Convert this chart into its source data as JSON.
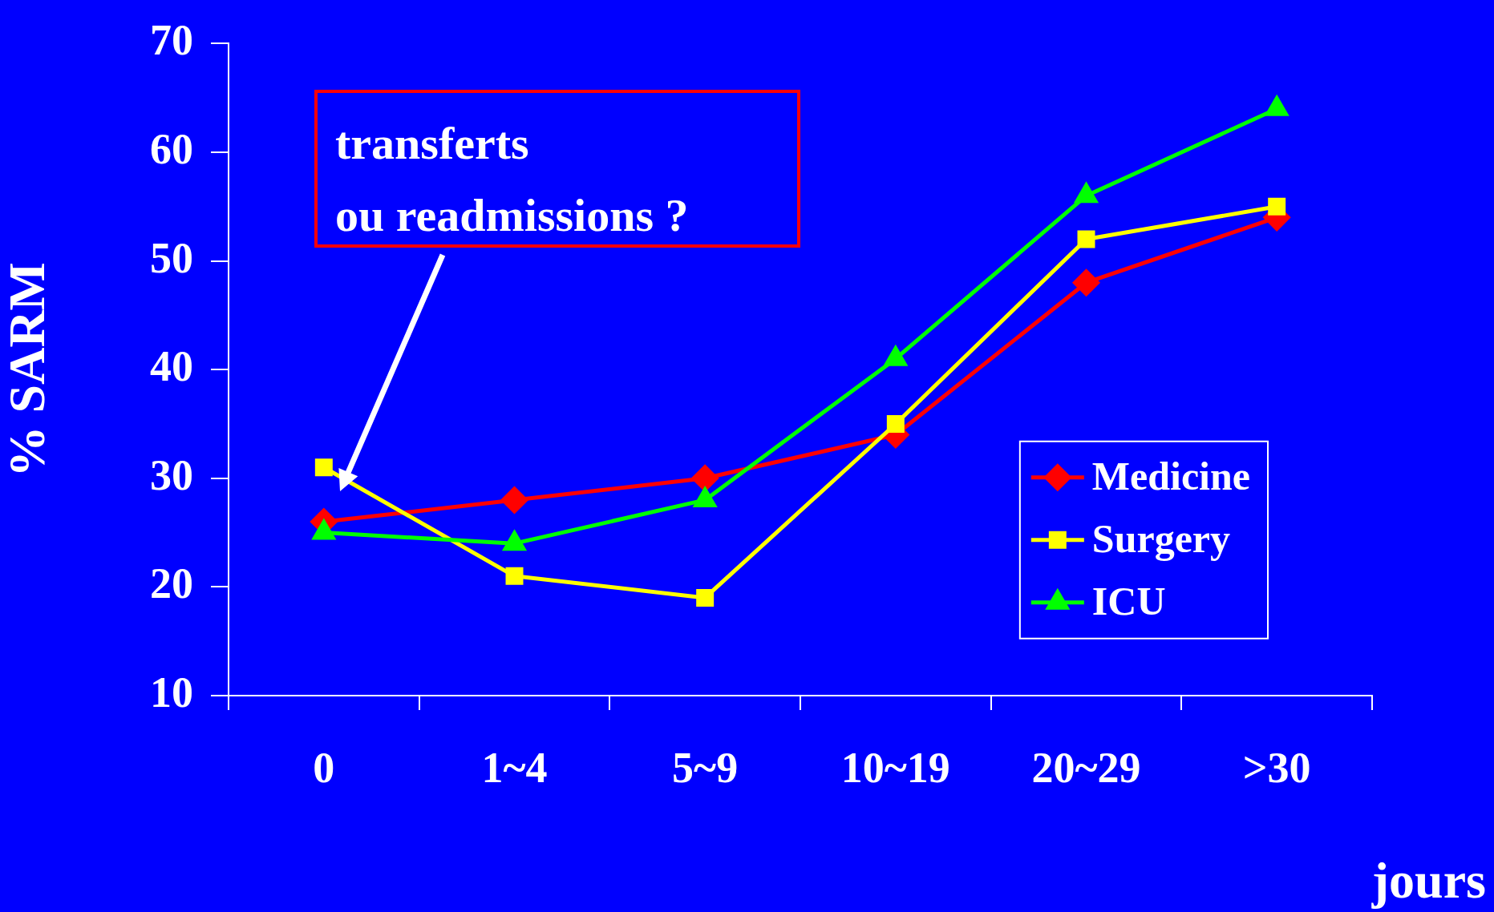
{
  "chart_data": {
    "type": "line",
    "xlabel": "jours",
    "ylabel": "% SARM",
    "categories": [
      "0",
      "1~4",
      "5~9",
      "10~19",
      "20~29",
      ">30"
    ],
    "series": [
      {
        "name": "Medicine",
        "color": "#ff0000",
        "marker": "diamond",
        "values": [
          26,
          28,
          30,
          34,
          48,
          54
        ]
      },
      {
        "name": "Surgery",
        "color": "#ffff00",
        "marker": "square",
        "values": [
          31,
          21,
          19,
          35,
          52,
          55
        ]
      },
      {
        "name": "ICU",
        "color": "#00ff00",
        "marker": "triangle",
        "values": [
          25,
          24,
          28,
          41,
          56,
          64
        ]
      }
    ],
    "ylim": [
      10,
      70
    ],
    "yticks": [
      10,
      20,
      30,
      40,
      50,
      60,
      70
    ],
    "legend": "right",
    "annotations": [
      "transferts\nou readmissions ?"
    ]
  }
}
